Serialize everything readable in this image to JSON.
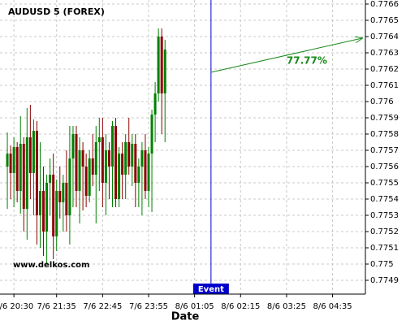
{
  "chart_data": {
    "type": "candlestick",
    "title": "AUDUSD 5 (FOREX)",
    "x_label": "Date",
    "watermark": "www.delkos.com",
    "x": [
      "7/6 20:20",
      "7/6 20:25",
      "7/6 20:30",
      "7/6 20:35",
      "7/6 20:40",
      "7/6 20:45",
      "7/6 20:50",
      "7/6 20:55",
      "7/6 21:00",
      "7/6 21:05",
      "7/6 21:10",
      "7/6 21:15",
      "7/6 21:20",
      "7/6 21:25",
      "7/6 21:30",
      "7/6 21:35",
      "7/6 21:40",
      "7/6 21:45",
      "7/6 21:50",
      "7/6 21:55",
      "7/6 22:00",
      "7/6 22:05",
      "7/6 22:10",
      "7/6 22:15",
      "7/6 22:20",
      "7/6 22:25",
      "7/6 22:30",
      "7/6 22:35",
      "7/6 22:40",
      "7/6 22:45",
      "7/6 22:50",
      "7/6 22:55",
      "7/6 23:00",
      "7/6 23:05",
      "7/6 23:10",
      "7/6 23:15",
      "7/6 23:20",
      "7/6 23:25",
      "7/6 23:30",
      "7/6 23:35",
      "7/6 23:40",
      "7/6 23:45",
      "7/6 23:50",
      "7/6 23:55",
      "8/6 00:00",
      "8/6 00:05",
      "8/6 00:10",
      "8/6 00:15",
      "8/6 00:20"
    ],
    "open": [
      0.7756,
      0.77568,
      0.77556,
      0.77572,
      0.77545,
      0.77574,
      0.77534,
      0.77578,
      0.77556,
      0.77582,
      0.7753,
      0.77545,
      0.7752,
      0.7755,
      0.77555,
      0.77517,
      0.77545,
      0.77538,
      0.7755,
      0.7753,
      0.77565,
      0.7758,
      0.77545,
      0.7757,
      0.7756,
      0.77542,
      0.77565,
      0.77555,
      0.77575,
      0.77578,
      0.7755,
      0.7757,
      0.7756,
      0.77585,
      0.7754,
      0.77568,
      0.77555,
      0.77575,
      0.7756,
      0.77574,
      0.7755,
      0.7756,
      0.7757,
      0.77545,
      0.77568,
      0.77592,
      0.77605,
      0.7764,
      0.77605
    ],
    "high": [
      0.77581,
      0.77573,
      0.77578,
      0.77575,
      0.77591,
      0.77578,
      0.77596,
      0.77598,
      0.77589,
      0.77588,
      0.77575,
      0.7756,
      0.77555,
      0.77565,
      0.77568,
      0.77552,
      0.7756,
      0.77555,
      0.7757,
      0.77585,
      0.77585,
      0.77585,
      0.77578,
      0.77575,
      0.77568,
      0.7757,
      0.7758,
      0.77585,
      0.7759,
      0.7759,
      0.7758,
      0.77575,
      0.77588,
      0.7759,
      0.77572,
      0.77575,
      0.7758,
      0.7759,
      0.7758,
      0.7758,
      0.77565,
      0.77575,
      0.7758,
      0.77572,
      0.77595,
      0.77612,
      0.77645,
      0.77645,
      0.77638
    ],
    "low": [
      0.77534,
      0.7754,
      0.77535,
      0.77538,
      0.77531,
      0.7752,
      0.77515,
      0.7754,
      0.7753,
      0.77512,
      0.7751,
      0.77505,
      0.775,
      0.7753,
      0.77503,
      0.77508,
      0.77528,
      0.7752,
      0.7752,
      0.77512,
      0.77535,
      0.77535,
      0.77525,
      0.77533,
      0.77535,
      0.77538,
      0.77548,
      0.77525,
      0.77545,
      0.77535,
      0.7753,
      0.7754,
      0.77535,
      0.77535,
      0.77535,
      0.7754,
      0.7754,
      0.77555,
      0.77548,
      0.77535,
      0.77535,
      0.7753,
      0.7754,
      0.77535,
      0.77532,
      0.77575,
      0.776,
      0.7758,
      0.77575
    ],
    "close": [
      0.77568,
      0.77556,
      0.77572,
      0.77545,
      0.77574,
      0.77534,
      0.77578,
      0.77556,
      0.77582,
      0.7753,
      0.77545,
      0.7752,
      0.7755,
      0.77555,
      0.77517,
      0.77545,
      0.77538,
      0.7755,
      0.7753,
      0.77565,
      0.7758,
      0.77545,
      0.7757,
      0.7756,
      0.77542,
      0.77565,
      0.77555,
      0.77575,
      0.77578,
      0.7755,
      0.7757,
      0.7756,
      0.77585,
      0.7754,
      0.77568,
      0.77555,
      0.77575,
      0.7756,
      0.77574,
      0.7755,
      0.7756,
      0.7757,
      0.77545,
      0.77568,
      0.77592,
      0.77605,
      0.7764,
      0.77605,
      0.77632
    ],
    "up_color": "#008000",
    "down_color": "#8b0000",
    "xlim": [
      "7/6 20:15",
      "8/6 05:25"
    ],
    "xticks": [
      "7/6 20:30",
      "7/6 21:35",
      "7/6 22:45",
      "7/6 23:55",
      "8/6 01:05",
      "8/6 02:15",
      "8/6 03:25",
      "8/6 04:35"
    ],
    "ylim": [
      0.774815,
      0.776625
    ],
    "yticks": [
      0.7749,
      0.775,
      0.7751,
      0.7752,
      0.7753,
      0.7754,
      0.7755,
      0.7756,
      0.7757,
      0.7758,
      0.7759,
      0.776,
      0.7761,
      0.7762,
      0.7763,
      0.7764,
      0.7765,
      0.7766
    ],
    "grid": true,
    "event": {
      "label": "Event",
      "x": "8/6 01:30",
      "color": "#0000cc"
    },
    "annotation": {
      "text": "77.77%",
      "x0": "8/6 01:30",
      "y0": 0.77618,
      "x1": "8/6 05:20",
      "y1": 0.77639,
      "color": "#1a8a1a"
    }
  }
}
